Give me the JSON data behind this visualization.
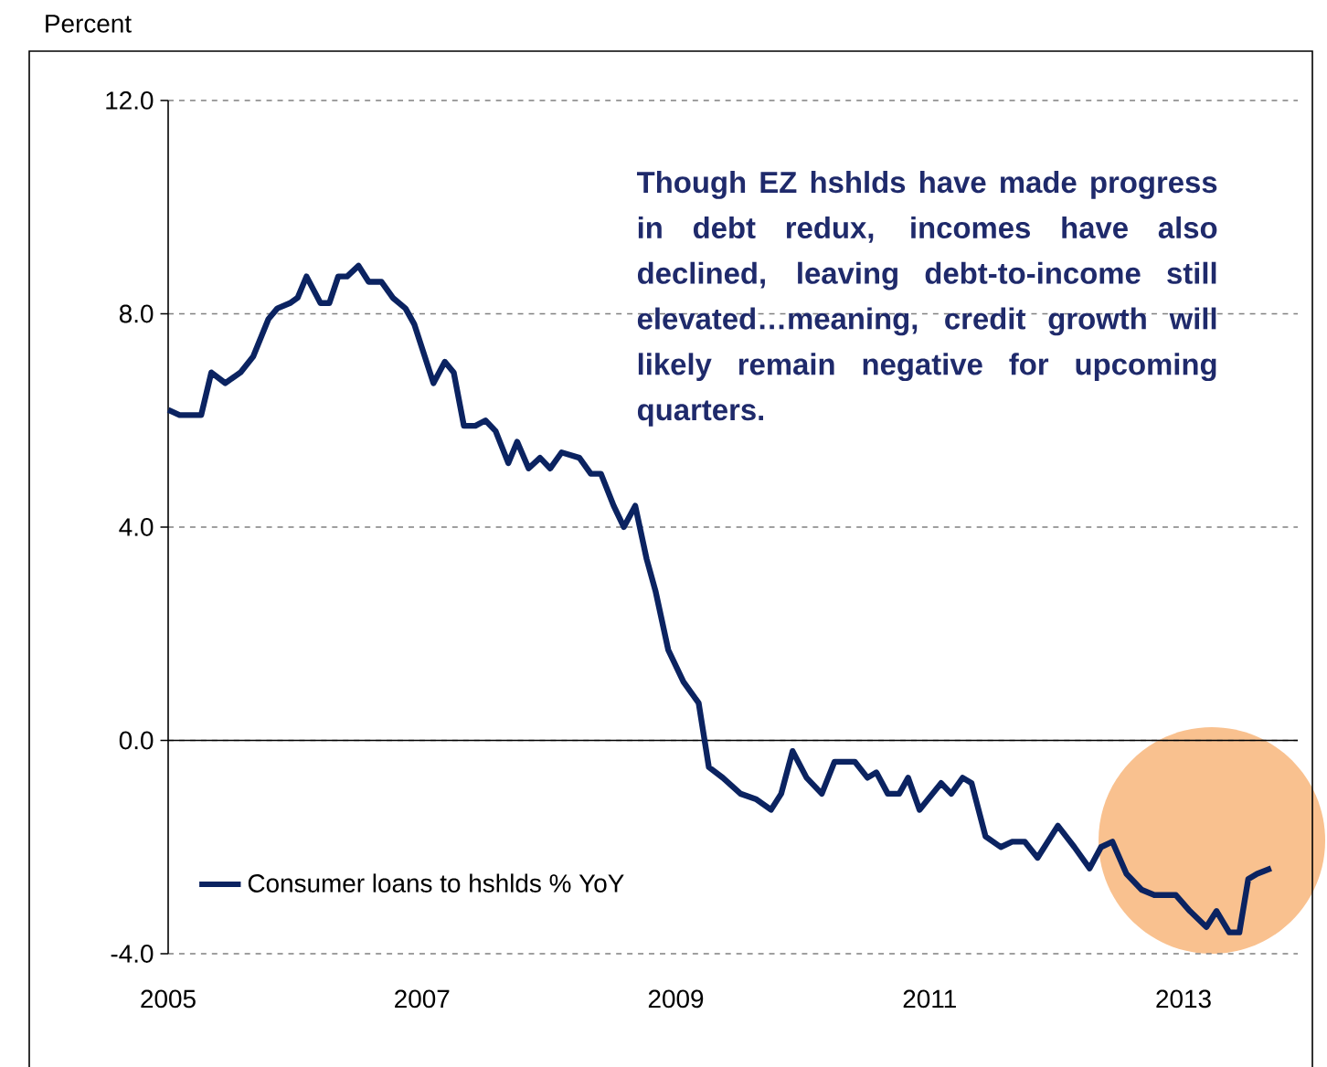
{
  "chart_data": {
    "type": "line",
    "ylabel": "Percent",
    "annotations": [
      "Though EZ hshlds have made progress in debt redux, incomes have also declined, leaving debt-to-income still elevated…meaning, credit growth will likely remain negative for upcoming quarters."
    ],
    "x": [
      2005.0,
      2005.09,
      2005.26,
      2005.34,
      2005.45,
      2005.57,
      2005.67,
      2005.79,
      2005.86,
      2005.96,
      2006.02,
      2006.09,
      2006.2,
      2006.27,
      2006.34,
      2006.41,
      2006.5,
      2006.58,
      2006.68,
      2006.77,
      2006.87,
      2006.94,
      2007.09,
      2007.18,
      2007.25,
      2007.33,
      2007.42,
      2007.5,
      2007.58,
      2007.68,
      2007.75,
      2007.84,
      2007.93,
      2008.01,
      2008.1,
      2008.24,
      2008.33,
      2008.41,
      2008.51,
      2008.59,
      2008.68,
      2008.77,
      2008.84,
      2008.94,
      2009.06,
      2009.18,
      2009.26,
      2009.37,
      2009.51,
      2009.63,
      2009.75,
      2009.83,
      2009.92,
      2010.03,
      2010.15,
      2010.25,
      2010.41,
      2010.51,
      2010.58,
      2010.67,
      2010.76,
      2010.83,
      2010.92,
      2011.09,
      2011.17,
      2011.26,
      2011.33,
      2011.44,
      2011.56,
      2011.65,
      2011.75,
      2011.85,
      2012.01,
      2012.14,
      2012.26,
      2012.35,
      2012.44,
      2012.55,
      2012.67,
      2012.77,
      2012.94,
      2013.05,
      2013.18,
      2013.26,
      2013.36,
      2013.44,
      2013.51,
      2013.58,
      2013.69
    ],
    "series": [
      {
        "name": "Consumer loans to hshlds % YoY",
        "color": "#0b2361",
        "values": [
          6.2,
          6.1,
          6.1,
          6.9,
          6.7,
          6.9,
          7.2,
          7.9,
          8.1,
          8.2,
          8.3,
          8.7,
          8.2,
          8.2,
          8.7,
          8.7,
          8.9,
          8.6,
          8.6,
          8.3,
          8.1,
          7.8,
          6.7,
          7.1,
          6.9,
          5.9,
          5.9,
          6.0,
          5.8,
          5.2,
          5.6,
          5.1,
          5.3,
          5.1,
          5.4,
          5.3,
          5.0,
          5.0,
          4.4,
          4.0,
          4.4,
          3.4,
          2.8,
          1.7,
          1.1,
          0.7,
          -0.5,
          -0.7,
          -1.0,
          -1.1,
          -1.3,
          -1.0,
          -0.2,
          -0.7,
          -1.0,
          -0.4,
          -0.4,
          -0.7,
          -0.6,
          -1.0,
          -1.0,
          -0.7,
          -1.3,
          -0.8,
          -1.0,
          -0.7,
          -0.8,
          -1.8,
          -2.0,
          -1.9,
          -1.9,
          -2.2,
          -1.6,
          -2.0,
          -2.4,
          -2.0,
          -1.9,
          -2.5,
          -2.8,
          -2.9,
          -2.9,
          -3.2,
          -3.5,
          -3.2,
          -3.6,
          -3.6,
          -2.6,
          -2.5,
          -2.4
        ]
      }
    ],
    "xlim": [
      2005,
      2013.9
    ],
    "ylim": [
      -4,
      12
    ],
    "xticks": [
      2005,
      2007,
      2009,
      2011,
      2013
    ],
    "yticks": [
      {
        "value": -4,
        "label": "-4.0"
      },
      {
        "value": 0,
        "label": "0.0"
      },
      {
        "value": 4,
        "label": "4.0"
      },
      {
        "value": 8,
        "label": "8.0"
      },
      {
        "value": 12,
        "label": "12.0"
      }
    ],
    "ref_lines": [
      {
        "axis": "y",
        "value": 0,
        "color": "#000000",
        "line_style": "solid"
      }
    ],
    "grid": "y",
    "legend": "bottom left",
    "marker": "none",
    "line_style": "solid"
  }
}
